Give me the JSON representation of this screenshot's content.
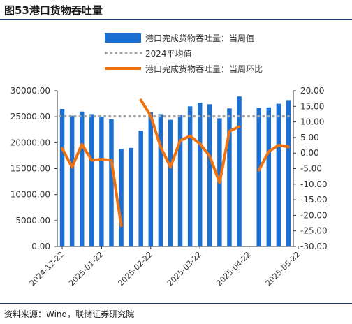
{
  "figure": {
    "title": "图53港口货物吞吐量",
    "source": "资料来源：Wind，联储证券研究院"
  },
  "chart_data": {
    "type": "bar",
    "title": "",
    "xlabel": "",
    "ylabel": "",
    "x_tick_labels": [
      "2024-12-22",
      "2025-01-22",
      "2025-02-22",
      "2025-03-22",
      "2025-04-22",
      "2025-05-22"
    ],
    "x_tick_positions": [
      0,
      4,
      9,
      14,
      19,
      24
    ],
    "y_left": {
      "min": 0,
      "max": 30000,
      "step": 5000,
      "tick_labels": [
        "0.00",
        "5000.00",
        "10000.00",
        "15000.00",
        "20000.00",
        "25000.00",
        "30000.00"
      ]
    },
    "y_right": {
      "min": -30,
      "max": 20,
      "step": 5,
      "tick_labels": [
        "-30.00",
        "-25.00",
        "-20.00",
        "-15.00",
        "-10.00",
        "-5.00",
        "0.00",
        "5.00",
        "10.00",
        "15.00",
        "20.00"
      ]
    },
    "legend_position": "top-right",
    "grid": false,
    "series": [
      {
        "name": "港口完成货物吞吐量：当周值",
        "type": "bar",
        "axis": "left",
        "color": "#1a6fd0",
        "values": [
          26500,
          25200,
          26000,
          25500,
          25000,
          24500,
          18800,
          19000,
          22300,
          25900,
          25500,
          24400,
          25400,
          27000,
          27700,
          27400,
          24700,
          26600,
          28900,
          null,
          26700,
          26800,
          27500,
          28200
        ]
      },
      {
        "name": "2024平均值",
        "type": "line",
        "style": "dotted",
        "axis": "left",
        "color": "#a6a6a6",
        "values": [
          25100,
          25100,
          25100,
          25100,
          25100,
          25100,
          25100,
          25100,
          25100,
          25100,
          25100,
          25100,
          25100,
          25100,
          25100,
          25100,
          25100,
          25100,
          25100,
          25100,
          25100,
          25100,
          25100,
          25100
        ]
      },
      {
        "name": "港口完成货物吞吐量：当周环比",
        "type": "line",
        "axis": "right",
        "color": "#f0720c",
        "values": [
          1.5,
          -4.5,
          2.8,
          -2.3,
          -2.0,
          -2.3,
          -23.3,
          null,
          17.0,
          12.0,
          2.0,
          -4.5,
          4.0,
          5.5,
          3.0,
          -1.0,
          -9.5,
          7.0,
          8.5,
          null,
          -5.5,
          0.5,
          2.5,
          2.0
        ]
      }
    ]
  }
}
